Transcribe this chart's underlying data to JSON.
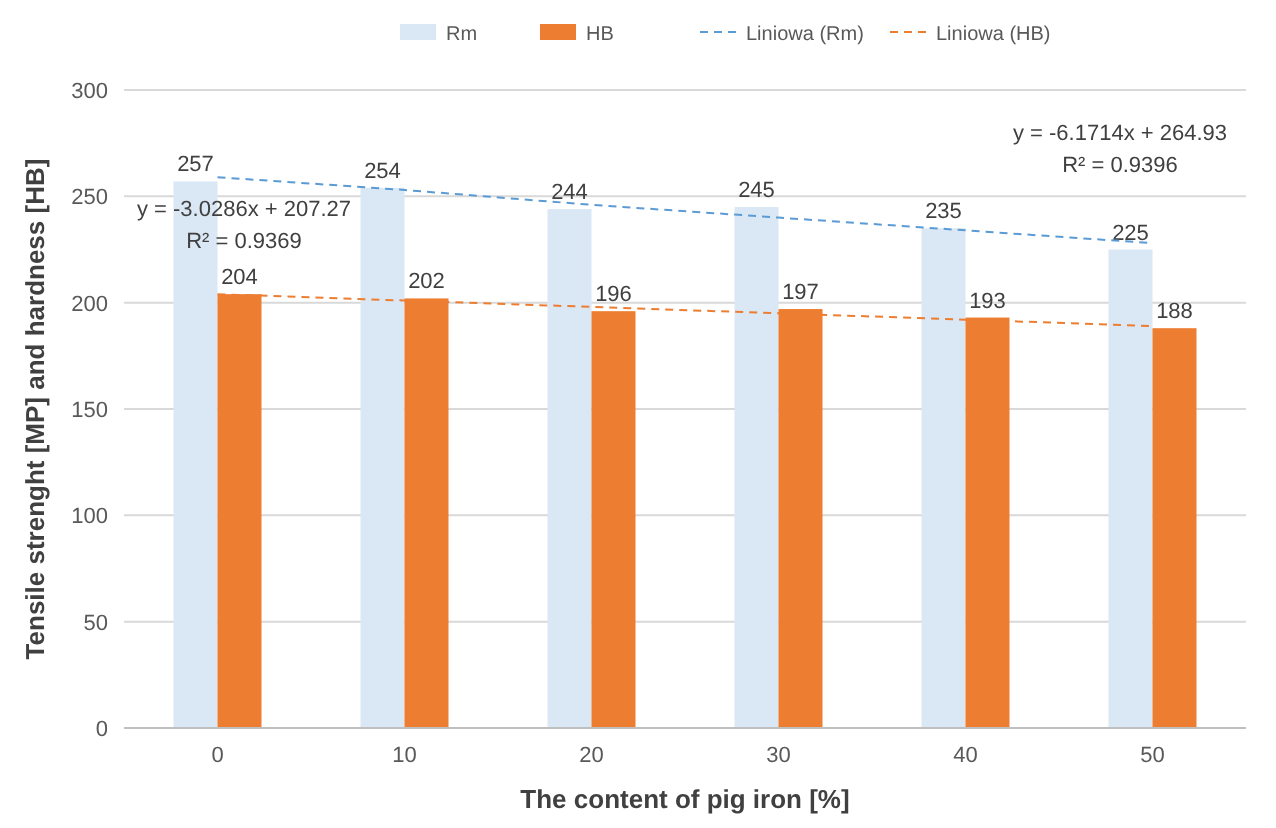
{
  "chart_data": {
    "type": "bar",
    "xlabel": "The content of pig iron [%]",
    "ylabel": "Tensile strenght [MP] and hardness [HB]",
    "categories": [
      "0",
      "10",
      "20",
      "30",
      "40",
      "50"
    ],
    "series": [
      {
        "name": "Rm",
        "color": "#dae7f4",
        "values": [
          257,
          254,
          244,
          245,
          235,
          225
        ],
        "value_labels": [
          "257",
          "254",
          "244",
          "245",
          "235",
          "225"
        ]
      },
      {
        "name": "HB",
        "color": "#ed7d31",
        "values": [
          204,
          202,
          196,
          197,
          193,
          188
        ],
        "value_labels": [
          "204",
          "202",
          "196",
          "197",
          "193",
          "188"
        ]
      },
      {
        "name": "Liniowa (Rm)",
        "type": "line",
        "color": "#5b9bd5",
        "line_style": "dashed",
        "values": [
          259,
          253,
          246,
          240,
          234,
          228
        ]
      },
      {
        "name": "Liniowa (HB)",
        "type": "line",
        "color": "#ed7d31",
        "line_style": "dashed",
        "values": [
          204,
          201,
          198,
          195,
          192,
          189
        ]
      }
    ],
    "ylim": [
      0,
      300
    ],
    "yticks": [
      0,
      50,
      100,
      150,
      200,
      250,
      300
    ],
    "grid": "y",
    "legend": "top",
    "annotations": [
      "y = -6.1714x + 264.93",
      "R² = 0.9396",
      "y = -3.0286x + 207.27",
      "R² = 0.9369"
    ]
  }
}
